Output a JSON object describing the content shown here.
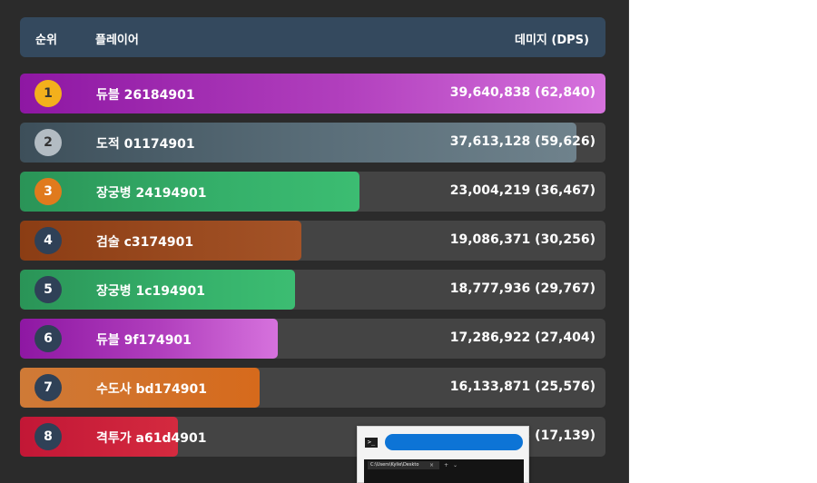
{
  "header": {
    "rank_label": "순위",
    "player_label": "플레이어",
    "damage_label": "데미지 (DPS)"
  },
  "rows": [
    {
      "rank": "1",
      "name": "듀블 26184901",
      "damage": "39,640,838 (62,840)",
      "class": "dual",
      "fill": 1.0
    },
    {
      "rank": "2",
      "name": "도적 01174901",
      "damage": "37,613,128 (59,626)",
      "class": "thief",
      "fill": 0.95
    },
    {
      "rank": "3",
      "name": "장궁병 24194901",
      "damage": "23,004,219 (36,467)",
      "class": "archer",
      "fill": 0.58
    },
    {
      "rank": "4",
      "name": "검술 c3174901",
      "damage": "19,086,371 (30,256)",
      "class": "sword",
      "fill": 0.48
    },
    {
      "rank": "5",
      "name": "장궁병 1c194901",
      "damage": "18,777,936 (29,767)",
      "class": "archer",
      "fill": 0.47
    },
    {
      "rank": "6",
      "name": "듀블 9f174901",
      "damage": "17,286,922 (27,404)",
      "class": "dual",
      "fill": 0.44
    },
    {
      "rank": "7",
      "name": "수도사 bd174901",
      "damage": "16,133,871 (25,576)",
      "class": "monk",
      "fill": 0.41
    },
    {
      "rank": "8",
      "name": "격투가 a61d4901",
      "damage": "10,811,313 (17,139)",
      "class": "brawler",
      "fill": 0.27
    }
  ],
  "overlay": {
    "icon": "terminal-icon",
    "tab_title": "C:\\Users\\Kylie\\Deskto",
    "tab_close": "×",
    "new_tab": "+",
    "dropdown": "⌄"
  }
}
